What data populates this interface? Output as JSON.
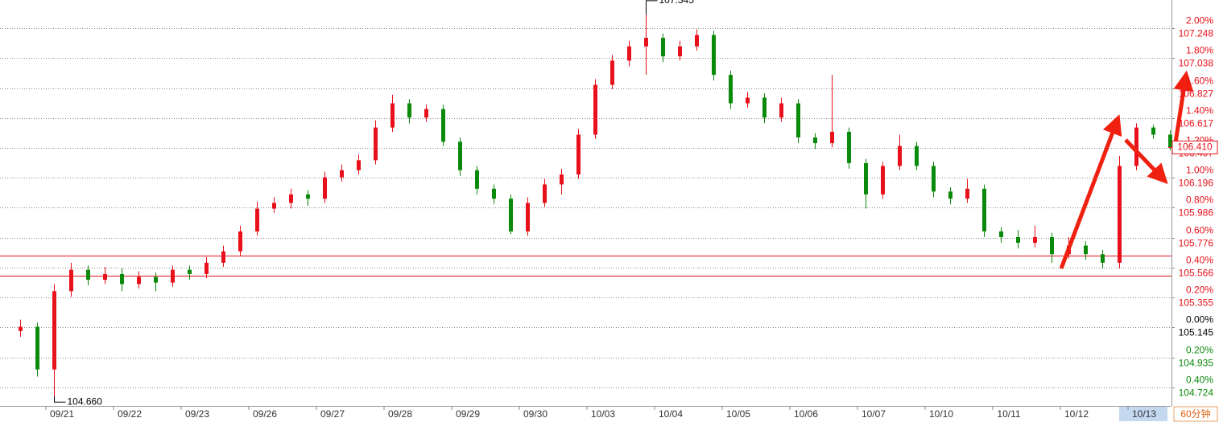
{
  "chart_data": {
    "type": "candlestick",
    "categories": [
      null,
      null,
      "09/21",
      null,
      null,
      null,
      "09/22",
      null,
      null,
      null,
      "09/23",
      null,
      null,
      null,
      "09/26",
      null,
      null,
      null,
      "09/27",
      null,
      null,
      null,
      "09/28",
      null,
      null,
      null,
      "09/29",
      null,
      null,
      null,
      "09/30",
      null,
      null,
      null,
      "10/03",
      null,
      null,
      null,
      "10/04",
      null,
      null,
      null,
      "10/05",
      null,
      null,
      null,
      "10/06",
      null,
      null,
      null,
      "10/07",
      null,
      null,
      null,
      "10/10",
      null,
      null,
      null,
      "10/11",
      null,
      null,
      null,
      "10/12",
      null,
      null,
      null,
      "10/13",
      null,
      null
    ],
    "open": [
      105.12,
      105.15,
      104.85,
      105.4,
      105.55,
      105.48,
      105.52,
      105.45,
      105.5,
      105.46,
      105.55,
      105.52,
      105.6,
      105.68,
      105.82,
      105.98,
      106.02,
      106.08,
      106.05,
      106.2,
      106.25,
      106.32,
      106.55,
      106.72,
      106.62,
      106.68,
      106.45,
      106.25,
      106.12,
      106.05,
      105.82,
      106.02,
      106.15,
      106.22,
      106.5,
      106.85,
      107.02,
      107.12,
      107.18,
      107.05,
      107.12,
      107.2,
      106.92,
      106.72,
      106.76,
      106.62,
      106.72,
      106.48,
      106.44,
      106.52,
      106.3,
      106.08,
      106.28,
      106.42,
      106.28,
      106.1,
      106.05,
      106.12,
      105.82,
      105.78,
      105.74,
      105.78,
      105.66,
      105.72,
      105.66,
      105.6,
      106.28,
      106.55,
      106.5
    ],
    "high": [
      105.2,
      105.18,
      105.45,
      105.6,
      105.58,
      105.57,
      105.56,
      105.54,
      105.53,
      105.58,
      105.58,
      105.64,
      105.72,
      105.86,
      106.03,
      106.06,
      106.12,
      106.11,
      106.24,
      106.29,
      106.36,
      106.6,
      106.78,
      106.75,
      106.71,
      106.71,
      106.48,
      106.28,
      106.15,
      106.08,
      106.06,
      106.19,
      106.26,
      106.54,
      106.89,
      107.06,
      107.16,
      107.345,
      107.21,
      107.16,
      107.24,
      107.23,
      106.95,
      106.8,
      106.79,
      106.76,
      106.75,
      106.51,
      106.92,
      106.55,
      106.33,
      106.31,
      106.5,
      106.45,
      106.31,
      106.13,
      106.19,
      106.15,
      105.85,
      105.83,
      105.86,
      105.81,
      105.78,
      105.75,
      105.69,
      106.35,
      106.58,
      106.57,
      106.53
    ],
    "low": [
      105.08,
      104.8,
      104.66,
      105.36,
      105.44,
      105.45,
      105.4,
      105.42,
      105.4,
      105.43,
      105.48,
      105.49,
      105.57,
      105.65,
      105.79,
      105.95,
      105.98,
      106.0,
      106.02,
      106.17,
      106.22,
      106.29,
      106.52,
      106.58,
      106.59,
      106.42,
      106.21,
      106.08,
      106.01,
      105.8,
      105.79,
      105.99,
      106.08,
      106.19,
      106.47,
      106.82,
      106.98,
      106.92,
      107.01,
      107.02,
      107.09,
      106.88,
      106.68,
      106.69,
      106.58,
      106.59,
      106.44,
      106.4,
      106.41,
      106.26,
      105.98,
      106.05,
      106.25,
      106.25,
      106.06,
      106.01,
      106.02,
      105.78,
      105.74,
      105.7,
      105.71,
      105.6,
      105.63,
      105.62,
      105.56,
      105.56,
      106.25,
      106.47,
      106.39
    ],
    "close": [
      105.15,
      104.85,
      105.4,
      105.55,
      105.48,
      105.52,
      105.45,
      105.5,
      105.46,
      105.55,
      105.52,
      105.6,
      105.68,
      105.82,
      105.98,
      106.02,
      106.08,
      106.05,
      106.2,
      106.25,
      106.32,
      106.55,
      106.72,
      106.62,
      106.68,
      106.45,
      106.25,
      106.12,
      106.05,
      105.82,
      106.02,
      106.15,
      106.22,
      106.5,
      106.85,
      107.02,
      107.12,
      107.18,
      107.05,
      107.12,
      107.2,
      106.92,
      106.72,
      106.76,
      106.62,
      106.72,
      106.48,
      106.44,
      106.52,
      106.3,
      106.08,
      106.28,
      106.42,
      106.28,
      106.1,
      106.05,
      106.12,
      105.82,
      105.78,
      105.74,
      105.78,
      105.66,
      105.72,
      105.66,
      105.6,
      106.28,
      106.55,
      106.5,
      106.41
    ],
    "up_color": "#e8101a",
    "down_color": "#0a8a0a",
    "ylim": [
      104.605,
      107.446
    ],
    "yticks": [
      107.248,
      107.038,
      106.827,
      106.617,
      106.407,
      106.196,
      105.986,
      105.776,
      105.566,
      105.355,
      105.145,
      104.935,
      104.724
    ],
    "pct_ticks": [
      {
        "value": 2.0,
        "label": "2.00%"
      },
      {
        "value": 1.8,
        "label": "1.80%"
      },
      {
        "value": 1.6,
        "label": "1.60%"
      },
      {
        "value": 1.4,
        "label": "1.40%"
      },
      {
        "value": 1.2,
        "label": "1.20%"
      },
      {
        "value": 1.0,
        "label": "1.00%"
      },
      {
        "value": 0.8,
        "label": "0.80%"
      },
      {
        "value": 0.6,
        "label": "0.60%"
      },
      {
        "value": 0.4,
        "label": "0.40%"
      },
      {
        "value": 0.2,
        "label": "0.20%"
      },
      {
        "value": 0.0,
        "label": "0.00%"
      },
      {
        "value": -0.2,
        "label": "0.20%"
      },
      {
        "value": -0.4,
        "label": "0.40%"
      }
    ],
    "grid": true,
    "annotations": [
      {
        "value": 107.345,
        "label": "107.345",
        "kind": "high"
      },
      {
        "value": 104.66,
        "label": "104.660",
        "kind": "low"
      }
    ],
    "last_price": {
      "value": 106.41,
      "label": "106.410"
    },
    "ref_lines": [
      105.65,
      105.509
    ],
    "timeframe": "60分钟"
  }
}
